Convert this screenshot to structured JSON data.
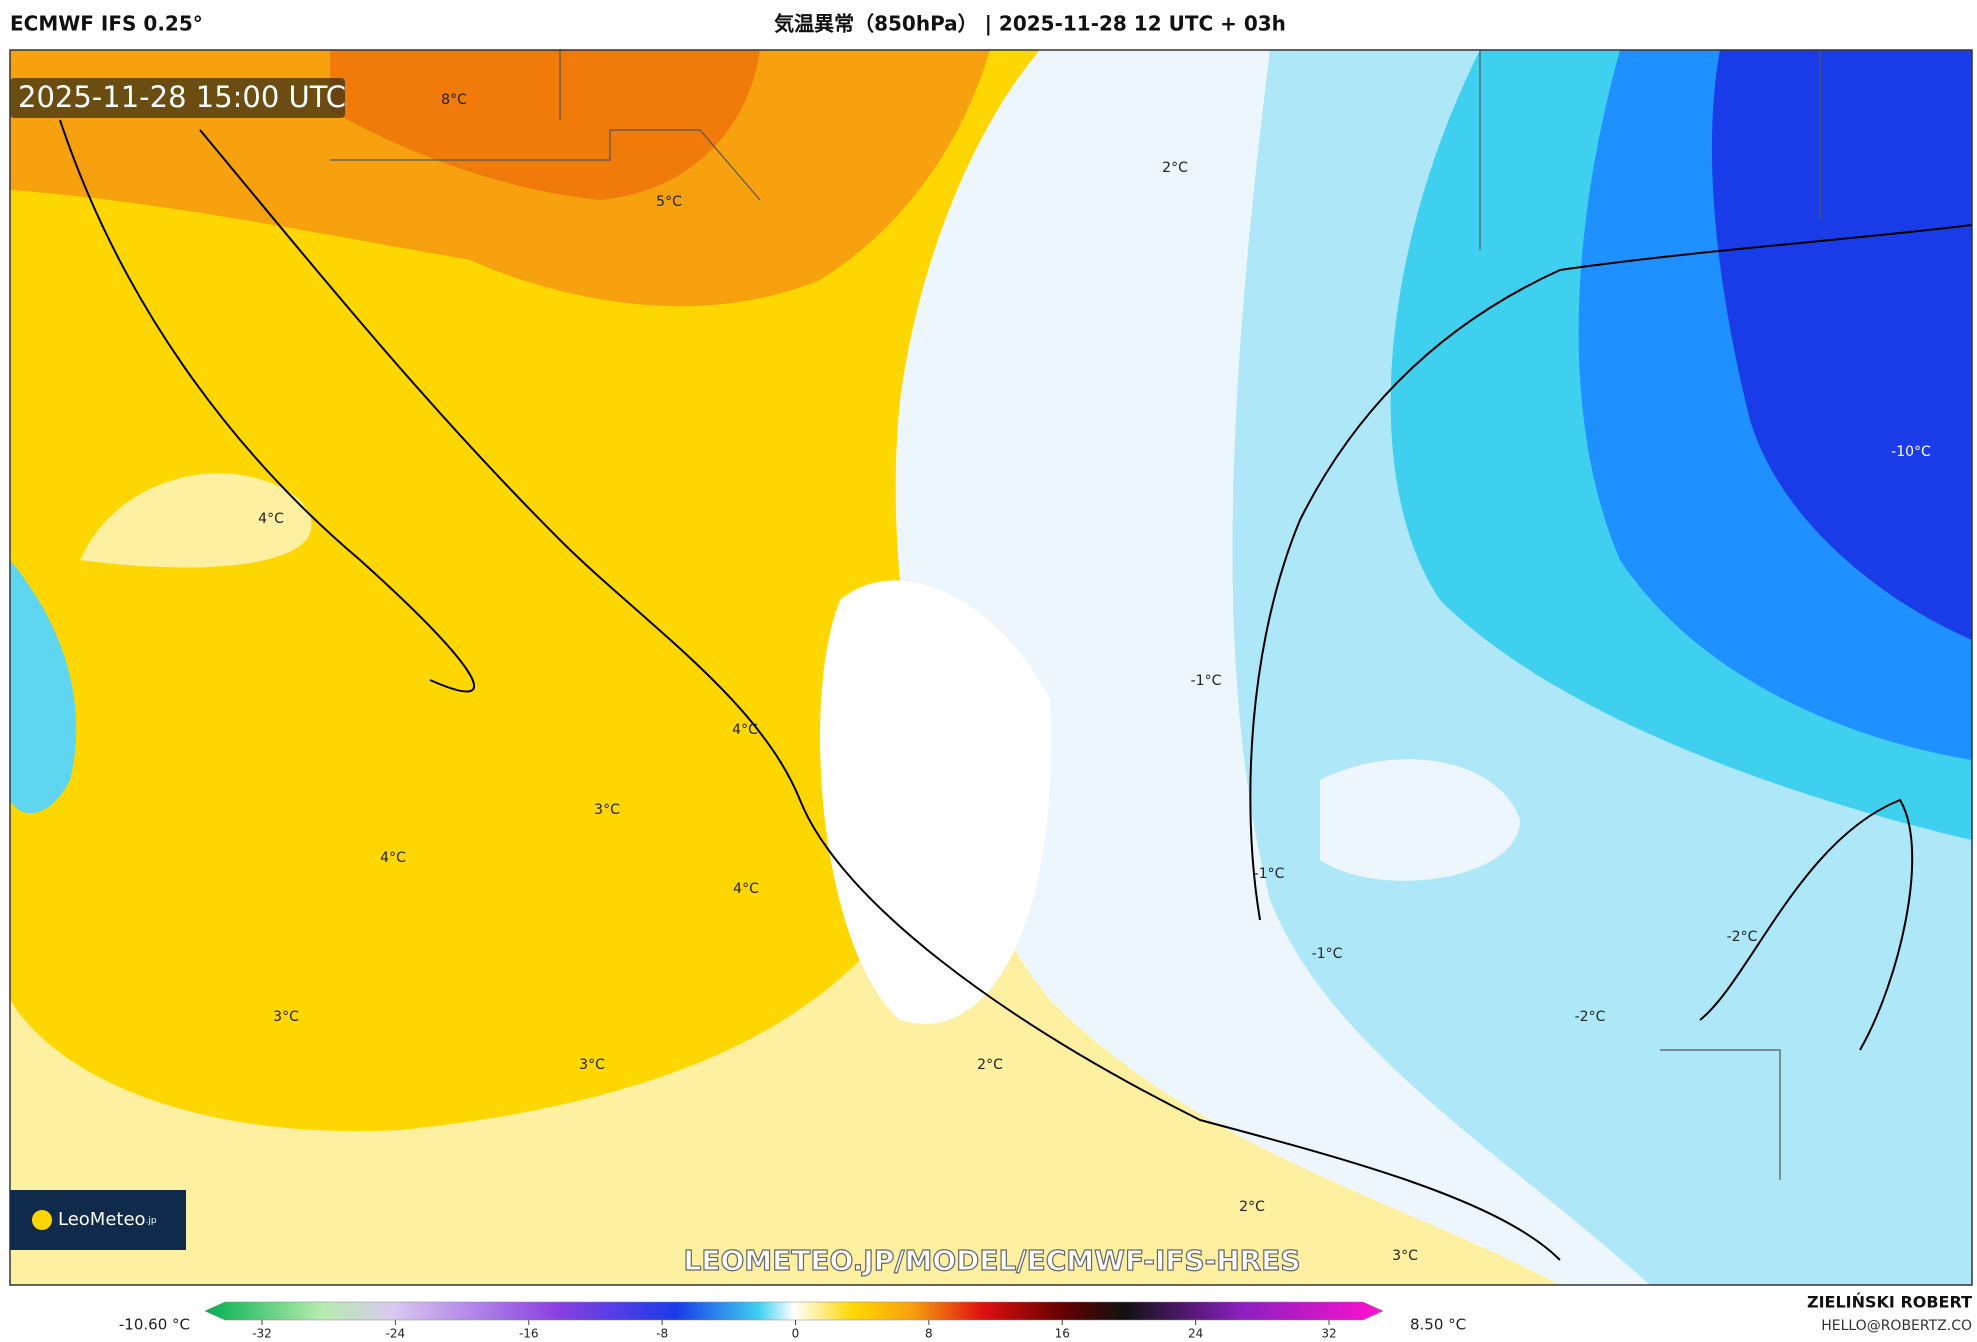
{
  "header": {
    "model": "ECMWF IFS 0.25°",
    "title": "気温異常（850hPa） | 2025-11-28 12 UTC + 03h"
  },
  "map": {
    "timestamp": "2025-11-28 15:00 UTC",
    "contour_labels": [
      "8°C",
      "5°C",
      "2°C",
      "4°C",
      "-10°C",
      "-1°C",
      "4°C",
      "3°C",
      "4°C",
      "4°C",
      "-1°C",
      "-1°C",
      "-2°C",
      "-2°C",
      "3°C",
      "3°C",
      "2°C",
      "2°C",
      "3°C"
    ],
    "watermark": "LEOMETEO.JP/MODEL/ECMWF-IFS-HRES",
    "logo": {
      "name": "LeoMeteo",
      "suffix": ".jp"
    }
  },
  "colorbar": {
    "min_label": "-10.60 °C",
    "max_label": "8.50 °C",
    "ticks": [
      -32,
      -24,
      -16,
      -8,
      0,
      8,
      16,
      24,
      32
    ]
  },
  "footer": {
    "author": "ZIELIŃSKI ROBERT",
    "contact": "HELLO@ROBERTZ.CO"
  }
}
